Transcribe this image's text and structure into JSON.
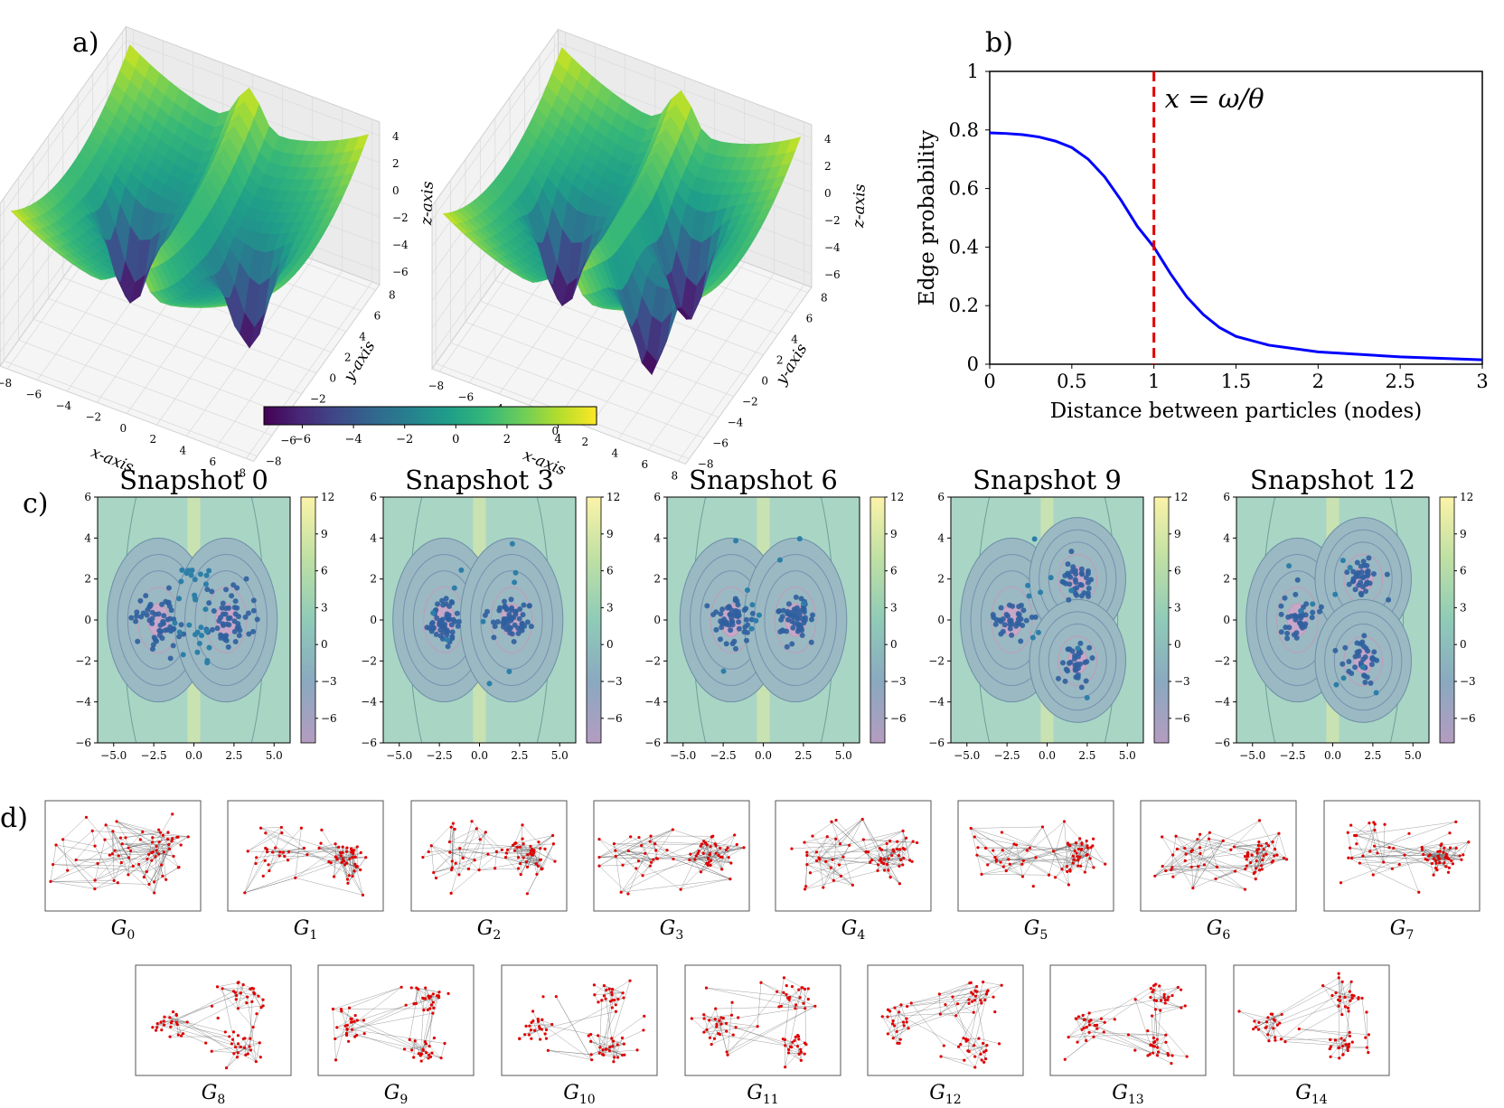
{
  "panel_labels": {
    "a": "a)",
    "b": "b)",
    "c": "c)",
    "d": "d)"
  },
  "chart_data": [
    {
      "id": "a",
      "type": "surface3d",
      "surfaces": [
        "surface-1",
        "surface-2"
      ],
      "xlabel": "x-axis",
      "ylabel": "y-axis",
      "zlabel": "z-axis",
      "x_ticks": [
        "−8",
        "−6",
        "−4",
        "−2",
        "0",
        "2",
        "4",
        "6",
        "8"
      ],
      "y_ticks": [
        "−8",
        "−6",
        "−4",
        "−2",
        "0",
        "2",
        "4",
        "6",
        "8"
      ],
      "z_ticks": [
        "4",
        "2",
        "0",
        "−2",
        "−4",
        "−6"
      ],
      "colorbar": {
        "ticks": [
          "−6",
          "−4",
          "−2",
          "0",
          "2",
          "4"
        ],
        "range": [
          -7.5,
          5.5
        ],
        "colormap": "viridis"
      }
    },
    {
      "id": "b",
      "type": "line",
      "xlabel": "Distance between particles (nodes)",
      "ylabel": "Edge probability",
      "xlim": [
        0,
        3
      ],
      "ylim": [
        0,
        1
      ],
      "x_ticks": [
        "0",
        "0.5",
        "1",
        "1.5",
        "2",
        "2.5",
        "3"
      ],
      "y_ticks": [
        "0",
        "0.2",
        "0.4",
        "0.6",
        "0.8",
        "1"
      ],
      "series": [
        {
          "name": "edge probability",
          "color": "#0000ff",
          "x": [
            0,
            0.1,
            0.2,
            0.3,
            0.4,
            0.5,
            0.6,
            0.7,
            0.8,
            0.9,
            1.0,
            1.1,
            1.2,
            1.3,
            1.4,
            1.5,
            1.7,
            2.0,
            2.5,
            3.0
          ],
          "values": [
            0.79,
            0.788,
            0.784,
            0.776,
            0.762,
            0.74,
            0.7,
            0.64,
            0.56,
            0.47,
            0.4,
            0.31,
            0.23,
            0.17,
            0.125,
            0.095,
            0.065,
            0.042,
            0.025,
            0.015
          ]
        }
      ],
      "vline": {
        "x": 1.0,
        "color": "#e00000",
        "label": "x = ω/θ"
      }
    },
    {
      "id": "c",
      "type": "scatter-contour",
      "snapshots": [
        {
          "title": "Snapshot 0",
          "wells": [
            [
              -2.2,
              0
            ],
            [
              2.0,
              0
            ]
          ]
        },
        {
          "title": "Snapshot 3",
          "wells": [
            [
              -2.2,
              0
            ],
            [
              2.0,
              0
            ]
          ]
        },
        {
          "title": "Snapshot 6",
          "wells": [
            [
              -2.0,
              0
            ],
            [
              2.0,
              0
            ]
          ]
        },
        {
          "title": "Snapshot 9",
          "wells": [
            [
              -2.2,
              0
            ],
            [
              1.9,
              2.0
            ],
            [
              1.9,
              -2.0
            ]
          ]
        },
        {
          "title": "Snapshot 12",
          "wells": [
            [
              -2.2,
              0
            ],
            [
              1.9,
              2.0
            ],
            [
              1.9,
              -2.0
            ]
          ]
        }
      ],
      "xlim": [
        -6,
        6
      ],
      "ylim": [
        -6,
        6
      ],
      "x_ticks": [
        "−5.0",
        "−2.5",
        "0.0",
        "2.5",
        "5.0"
      ],
      "y_ticks": [
        "6",
        "4",
        "2",
        "0",
        "−2",
        "−4",
        "−6"
      ],
      "colorbar_ticks": [
        "12",
        "9",
        "6",
        "3",
        "0",
        "−3",
        "−6"
      ]
    },
    {
      "id": "d",
      "type": "graph-snapshots",
      "graphs": [
        {
          "label": "G",
          "sub": "0",
          "clusters": 2
        },
        {
          "label": "G",
          "sub": "1",
          "clusters": 2
        },
        {
          "label": "G",
          "sub": "2",
          "clusters": 2
        },
        {
          "label": "G",
          "sub": "3",
          "clusters": 2
        },
        {
          "label": "G",
          "sub": "4",
          "clusters": 2
        },
        {
          "label": "G",
          "sub": "5",
          "clusters": 2
        },
        {
          "label": "G",
          "sub": "6",
          "clusters": 2
        },
        {
          "label": "G",
          "sub": "7",
          "clusters": 2
        },
        {
          "label": "G",
          "sub": "8",
          "clusters": 3
        },
        {
          "label": "G",
          "sub": "9",
          "clusters": 3
        },
        {
          "label": "G",
          "sub": "10",
          "clusters": 3
        },
        {
          "label": "G",
          "sub": "11",
          "clusters": 3
        },
        {
          "label": "G",
          "sub": "12",
          "clusters": 3
        },
        {
          "label": "G",
          "sub": "13",
          "clusters": 3
        },
        {
          "label": "G",
          "sub": "14",
          "clusters": 3
        }
      ]
    }
  ]
}
